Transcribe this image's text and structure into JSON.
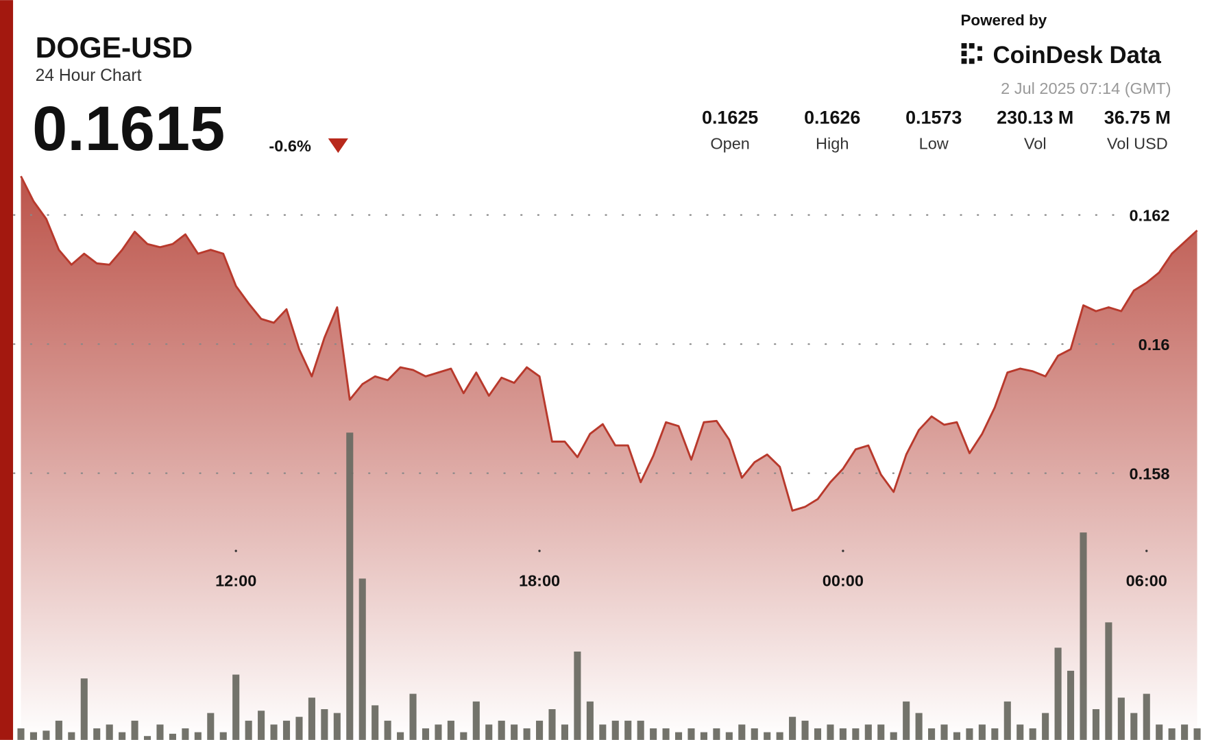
{
  "header": {
    "title": "DOGE-USD",
    "subtitle": "24 Hour Chart",
    "price": "0.1615",
    "change": "-0.6%",
    "powered_by": "Powered by",
    "brand": "CoinDesk Data",
    "timestamp": "2 Jul 2025 07:14 (GMT)",
    "stats": [
      {
        "value": "0.1625",
        "label": "Open"
      },
      {
        "value": "0.1626",
        "label": "High"
      },
      {
        "value": "0.1573",
        "label": "Low"
      },
      {
        "value": "230.13 M",
        "label": "Vol"
      },
      {
        "value": "36.75 M",
        "label": "Vol USD"
      }
    ]
  },
  "chart_data": {
    "type": "line",
    "color": "#b8392c",
    "grid": true,
    "x": [
      7.75,
      8,
      8.25,
      8.5,
      8.75,
      9,
      9.25,
      9.5,
      9.75,
      10,
      10.25,
      10.5,
      10.75,
      11,
      11.25,
      11.5,
      11.75,
      12,
      12.25,
      12.5,
      12.75,
      13,
      13.25,
      13.5,
      13.75,
      14,
      14.25,
      14.5,
      14.75,
      15,
      15.25,
      15.5,
      15.75,
      16,
      16.25,
      16.5,
      16.75,
      17,
      17.25,
      17.5,
      17.75,
      18,
      18.25,
      18.5,
      18.75,
      19,
      19.25,
      19.5,
      19.75,
      20,
      20.25,
      20.5,
      20.75,
      21,
      21.25,
      21.5,
      21.75,
      22,
      22.25,
      22.5,
      22.75,
      23,
      23.25,
      23.5,
      23.75,
      24,
      24.25,
      24.5,
      24.75,
      25,
      25.25,
      25.5,
      25.75,
      26,
      26.25,
      26.5,
      26.75,
      27,
      27.25,
      27.5,
      27.75,
      28,
      28.25,
      28.5,
      28.75,
      29,
      29.25,
      29.5,
      29.75,
      30,
      30.25,
      30.5,
      30.75,
      31
    ],
    "values": [
      0.1626,
      0.16221,
      0.16194,
      0.16146,
      0.16123,
      0.1614,
      0.16125,
      0.16123,
      0.16146,
      0.16174,
      0.16155,
      0.1615,
      0.16155,
      0.1617,
      0.1614,
      0.16146,
      0.1614,
      0.1609,
      0.16063,
      0.16039,
      0.16033,
      0.16054,
      0.15992,
      0.1595,
      0.1601,
      0.16057,
      0.15914,
      0.15938,
      0.1595,
      0.15944,
      0.15964,
      0.1596,
      0.1595,
      0.15956,
      0.15962,
      0.15924,
      0.15956,
      0.1592,
      0.15948,
      0.1594,
      0.15964,
      0.1595,
      0.15849,
      0.15849,
      0.15825,
      0.15861,
      0.15876,
      0.15843,
      0.15843,
      0.15786,
      0.15827,
      0.15879,
      0.15873,
      0.15821,
      0.15879,
      0.15881,
      0.15852,
      0.15793,
      0.15817,
      0.15829,
      0.1581,
      0.15742,
      0.15748,
      0.1576,
      0.15786,
      0.15807,
      0.15837,
      0.15843,
      0.15798,
      0.15771,
      0.15829,
      0.15867,
      0.15888,
      0.15875,
      0.15879,
      0.15831,
      0.15861,
      0.15902,
      0.15956,
      0.15962,
      0.15958,
      0.1595,
      0.15982,
      0.15992,
      0.1606,
      0.16051,
      0.16057,
      0.16051,
      0.16083,
      0.16095,
      0.16111,
      0.1614,
      0.16158,
      0.16176
    ],
    "volume": {
      "color": "#6b6b63",
      "ylim": [
        0,
        420
      ],
      "values": [
        15,
        10,
        12,
        25,
        10,
        80,
        15,
        20,
        10,
        25,
        5,
        20,
        8,
        15,
        10,
        35,
        10,
        85,
        25,
        38,
        20,
        25,
        30,
        55,
        40,
        35,
        400,
        210,
        45,
        25,
        10,
        60,
        15,
        20,
        25,
        10,
        50,
        20,
        25,
        20,
        15,
        25,
        40,
        20,
        115,
        50,
        20,
        25,
        25,
        25,
        15,
        15,
        10,
        15,
        10,
        15,
        10,
        20,
        15,
        10,
        10,
        30,
        25,
        15,
        20,
        15,
        15,
        20,
        20,
        10,
        50,
        35,
        15,
        20,
        10,
        15,
        20,
        15,
        50,
        20,
        15,
        35,
        120,
        90,
        270,
        40,
        153,
        55,
        35,
        60,
        20,
        15,
        20,
        15
      ]
    },
    "xlim": [
      7.61,
      31.155
    ],
    "ylim": [
      0.15387,
      0.16271
    ],
    "xticks": [
      {
        "value": 12,
        "label": "12:00"
      },
      {
        "value": 18,
        "label": "18:00"
      },
      {
        "value": 24,
        "label": "00:00"
      },
      {
        "value": 30,
        "label": "06:00"
      }
    ],
    "yticks": [
      0.158,
      0.16,
      0.162
    ]
  }
}
